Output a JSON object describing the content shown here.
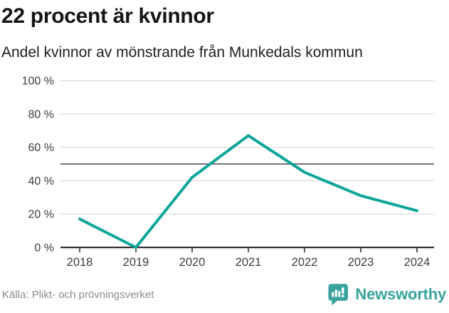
{
  "header": {
    "title": "22 procent är kvinnor",
    "subtitle": "Andel kvinnor av mönstrande från Munkedals kommun"
  },
  "chart_data": {
    "type": "line",
    "title": "22 procent är kvinnor",
    "subtitle": "Andel kvinnor av mönstrande från Munkedals kommun",
    "categories": [
      "2018",
      "2019",
      "2020",
      "2021",
      "2022",
      "2023",
      "2024"
    ],
    "series": [
      {
        "name": "Andel kvinnor av mönstrande",
        "values": [
          17,
          0,
          42,
          67,
          45,
          31,
          22
        ]
      }
    ],
    "unit": "%",
    "ylim": [
      0,
      100
    ],
    "yticks": [
      0,
      20,
      40,
      60,
      80,
      100
    ],
    "ytick_suffix": " %",
    "reference_line": 50,
    "grid": true,
    "legend": "none",
    "line_color": "#0da59a"
  },
  "footer": {
    "source": "Källa: Plikt- och prövningsverket",
    "brand": "Newsworthy"
  },
  "colors": {
    "accent_teal": "#0da59a",
    "brand_teal": "#38a39d",
    "grid": "#dcdcdc",
    "reference": "#5f6368",
    "axis": "#333333",
    "tick_label": "#3d3d3d",
    "muted_text": "#8c8c8c",
    "title_text": "#151515",
    "logo_glyph": "#ffffff"
  }
}
